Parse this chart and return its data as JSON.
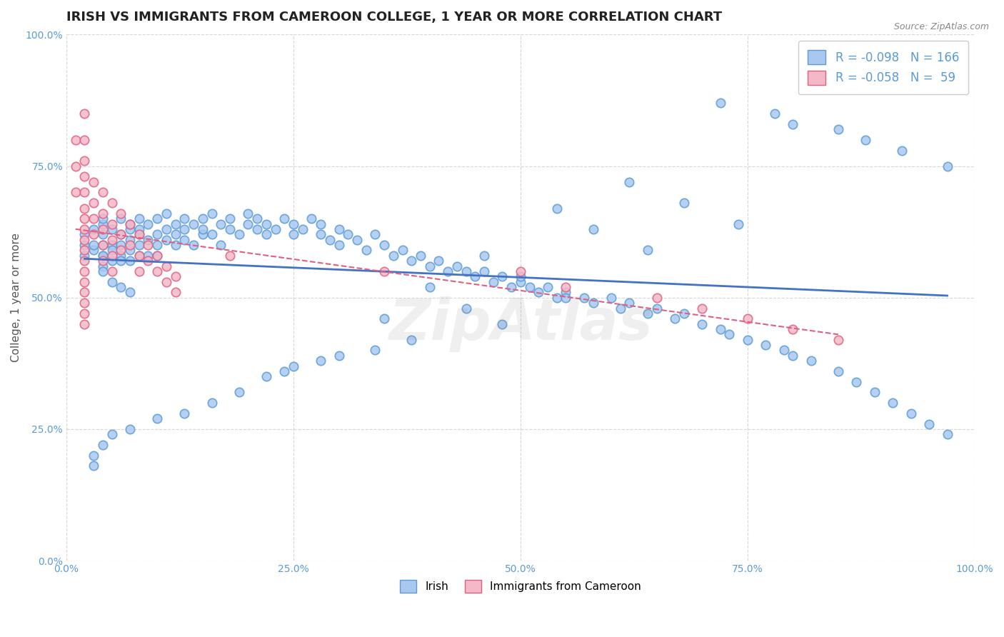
{
  "title": "IRISH VS IMMIGRANTS FROM CAMEROON COLLEGE, 1 YEAR OR MORE CORRELATION CHART",
  "source_text": "Source: ZipAtlas.com",
  "ylabel": "College, 1 year or more",
  "xlim": [
    0.0,
    1.0
  ],
  "ylim": [
    0.0,
    1.0
  ],
  "xticks": [
    0.0,
    0.25,
    0.5,
    0.75,
    1.0
  ],
  "yticks": [
    0.0,
    0.25,
    0.5,
    0.75,
    1.0
  ],
  "xticklabels": [
    "0.0%",
    "25.0%",
    "50.0%",
    "75.0%",
    "100.0%"
  ],
  "yticklabels": [
    "0.0%",
    "25.0%",
    "50.0%",
    "75.0%",
    "100.0%"
  ],
  "irish_color": "#a8c8f0",
  "irish_edge_color": "#5b9bd5",
  "irish_line_color": "#4472c4",
  "cameroon_color": "#f4b8c8",
  "cameroon_edge_color": "#e06080",
  "cameroon_line_color": "#e06080",
  "irish_R": -0.098,
  "irish_N": 166,
  "cameroon_R": -0.058,
  "cameroon_N": 59,
  "legend_irish_label": "Irish",
  "legend_cameroon_label": "Immigrants from Cameroon",
  "marker_size": 80,
  "irish_x": [
    0.02,
    0.02,
    0.02,
    0.03,
    0.03,
    0.03,
    0.04,
    0.04,
    0.04,
    0.04,
    0.04,
    0.04,
    0.04,
    0.05,
    0.05,
    0.05,
    0.05,
    0.06,
    0.06,
    0.06,
    0.06,
    0.06,
    0.07,
    0.07,
    0.07,
    0.07,
    0.07,
    0.08,
    0.08,
    0.08,
    0.08,
    0.08,
    0.09,
    0.09,
    0.09,
    0.1,
    0.1,
    0.1,
    0.1,
    0.11,
    0.11,
    0.11,
    0.12,
    0.12,
    0.12,
    0.13,
    0.13,
    0.13,
    0.14,
    0.14,
    0.15,
    0.15,
    0.15,
    0.16,
    0.16,
    0.17,
    0.17,
    0.18,
    0.18,
    0.19,
    0.2,
    0.2,
    0.21,
    0.21,
    0.22,
    0.22,
    0.23,
    0.24,
    0.25,
    0.25,
    0.26,
    0.27,
    0.28,
    0.28,
    0.29,
    0.3,
    0.3,
    0.31,
    0.32,
    0.33,
    0.34,
    0.35,
    0.36,
    0.37,
    0.38,
    0.39,
    0.4,
    0.41,
    0.42,
    0.43,
    0.44,
    0.45,
    0.46,
    0.47,
    0.48,
    0.49,
    0.5,
    0.51,
    0.52,
    0.53,
    0.54,
    0.55,
    0.57,
    0.58,
    0.6,
    0.61,
    0.62,
    0.64,
    0.65,
    0.67,
    0.68,
    0.7,
    0.72,
    0.73,
    0.75,
    0.77,
    0.79,
    0.8,
    0.82,
    0.85,
    0.87,
    0.89,
    0.91,
    0.93,
    0.95,
    0.97,
    0.72,
    0.78,
    0.8,
    0.85,
    0.88,
    0.92,
    0.97,
    0.62,
    0.68,
    0.74,
    0.54,
    0.58,
    0.64,
    0.46,
    0.5,
    0.55,
    0.4,
    0.44,
    0.48,
    0.35,
    0.38,
    0.3,
    0.34,
    0.25,
    0.28,
    0.22,
    0.24,
    0.19,
    0.16,
    0.13,
    0.1,
    0.07,
    0.05,
    0.04,
    0.03,
    0.03,
    0.04,
    0.05,
    0.06,
    0.07
  ],
  "irish_y": [
    0.6,
    0.58,
    0.62,
    0.59,
    0.63,
    0.6,
    0.58,
    0.64,
    0.6,
    0.56,
    0.62,
    0.58,
    0.65,
    0.6,
    0.57,
    0.63,
    0.59,
    0.6,
    0.62,
    0.58,
    0.65,
    0.57,
    0.61,
    0.63,
    0.59,
    0.64,
    0.57,
    0.62,
    0.6,
    0.65,
    0.58,
    0.63,
    0.61,
    0.64,
    0.58,
    0.62,
    0.65,
    0.6,
    0.58,
    0.63,
    0.61,
    0.66,
    0.62,
    0.64,
    0.6,
    0.63,
    0.65,
    0.61,
    0.64,
    0.6,
    0.62,
    0.65,
    0.63,
    0.66,
    0.62,
    0.64,
    0.6,
    0.63,
    0.65,
    0.62,
    0.64,
    0.66,
    0.63,
    0.65,
    0.62,
    0.64,
    0.63,
    0.65,
    0.62,
    0.64,
    0.63,
    0.65,
    0.62,
    0.64,
    0.61,
    0.63,
    0.6,
    0.62,
    0.61,
    0.59,
    0.62,
    0.6,
    0.58,
    0.59,
    0.57,
    0.58,
    0.56,
    0.57,
    0.55,
    0.56,
    0.55,
    0.54,
    0.55,
    0.53,
    0.54,
    0.52,
    0.53,
    0.52,
    0.51,
    0.52,
    0.5,
    0.51,
    0.5,
    0.49,
    0.5,
    0.48,
    0.49,
    0.47,
    0.48,
    0.46,
    0.47,
    0.45,
    0.44,
    0.43,
    0.42,
    0.41,
    0.4,
    0.39,
    0.38,
    0.36,
    0.34,
    0.32,
    0.3,
    0.28,
    0.26,
    0.24,
    0.87,
    0.85,
    0.83,
    0.82,
    0.8,
    0.78,
    0.75,
    0.72,
    0.68,
    0.64,
    0.67,
    0.63,
    0.59,
    0.58,
    0.54,
    0.5,
    0.52,
    0.48,
    0.45,
    0.46,
    0.42,
    0.39,
    0.4,
    0.37,
    0.38,
    0.35,
    0.36,
    0.32,
    0.3,
    0.28,
    0.27,
    0.25,
    0.24,
    0.22,
    0.2,
    0.18,
    0.55,
    0.53,
    0.52,
    0.51
  ],
  "cameroon_x": [
    0.01,
    0.01,
    0.01,
    0.02,
    0.02,
    0.02,
    0.02,
    0.02,
    0.02,
    0.02,
    0.02,
    0.02,
    0.02,
    0.02,
    0.02,
    0.02,
    0.02,
    0.02,
    0.02,
    0.02,
    0.03,
    0.03,
    0.03,
    0.03,
    0.04,
    0.04,
    0.04,
    0.04,
    0.04,
    0.05,
    0.05,
    0.05,
    0.05,
    0.05,
    0.06,
    0.06,
    0.06,
    0.07,
    0.07,
    0.08,
    0.08,
    0.08,
    0.09,
    0.09,
    0.1,
    0.1,
    0.11,
    0.11,
    0.12,
    0.12,
    0.18,
    0.35,
    0.5,
    0.55,
    0.65,
    0.7,
    0.75,
    0.8,
    0.85
  ],
  "cameroon_y": [
    0.8,
    0.75,
    0.7,
    0.85,
    0.8,
    0.76,
    0.73,
    0.7,
    0.67,
    0.65,
    0.63,
    0.61,
    0.59,
    0.57,
    0.55,
    0.53,
    0.51,
    0.49,
    0.47,
    0.45,
    0.72,
    0.68,
    0.65,
    0.62,
    0.7,
    0.66,
    0.63,
    0.6,
    0.57,
    0.68,
    0.64,
    0.61,
    0.58,
    0.55,
    0.66,
    0.62,
    0.59,
    0.64,
    0.6,
    0.62,
    0.58,
    0.55,
    0.6,
    0.57,
    0.58,
    0.55,
    0.56,
    0.53,
    0.54,
    0.51,
    0.58,
    0.55,
    0.55,
    0.52,
    0.5,
    0.48,
    0.46,
    0.44,
    0.42
  ],
  "background_color": "#ffffff",
  "grid_color": "#cccccc",
  "title_fontsize": 13,
  "axis_label_fontsize": 11,
  "tick_fontsize": 10,
  "watermark_text": "ZipAtlas",
  "watermark_alpha": 0.12
}
